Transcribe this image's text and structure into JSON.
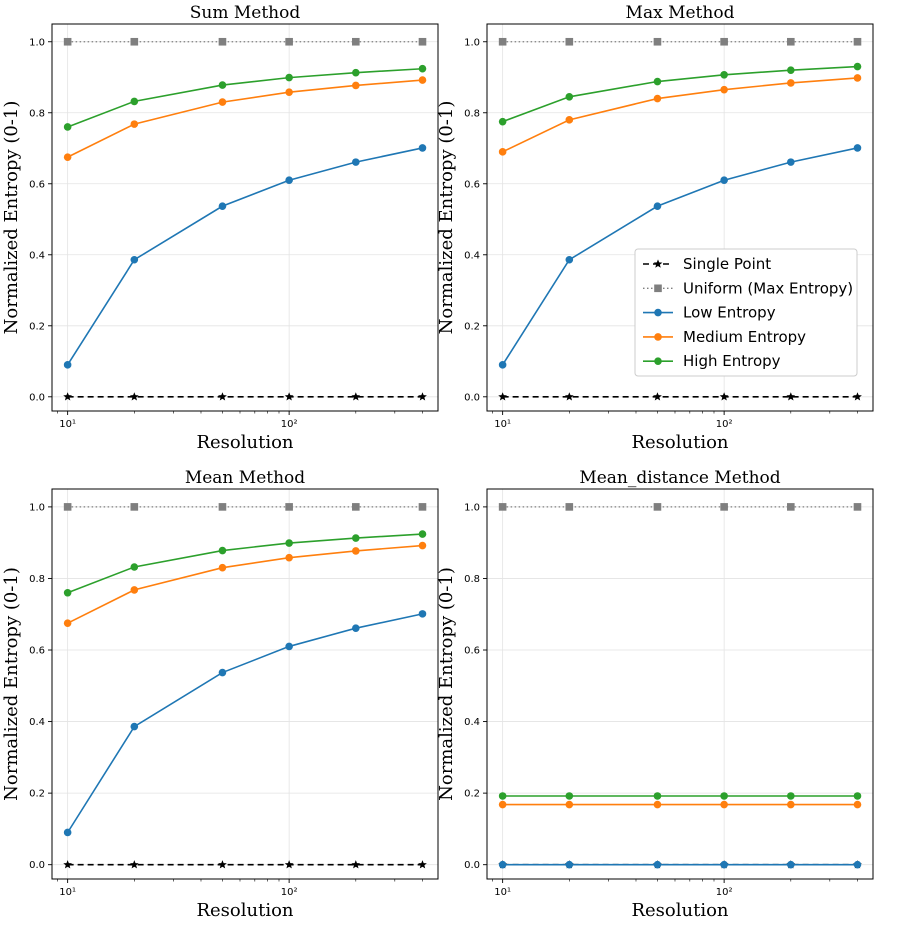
{
  "colors": {
    "single_point": "#000000",
    "uniform": "#7f7f7f",
    "low": "#1f77b4",
    "medium": "#ff7f0e",
    "high": "#2ca02c",
    "grid": "#e3e3e3"
  },
  "legend": {
    "placement": "center-right",
    "panel": 1,
    "entries": [
      "Single Point",
      "Uniform (Max Entropy)",
      "Low Entropy",
      "Medium Entropy",
      "High Entropy"
    ]
  },
  "chart_data": [
    {
      "type": "line",
      "title": "Sum Method",
      "xlabel": "Resolution",
      "ylabel": "Normalized Entropy (0-1)",
      "xscale": "log",
      "grid": true,
      "x": [
        10,
        20,
        50,
        100,
        200,
        400
      ],
      "ylim": [
        -0.04,
        1.05
      ],
      "yticks": [
        "0.0",
        "0.2",
        "0.4",
        "0.6",
        "0.8",
        "1.0"
      ],
      "xticks": [
        "10¹",
        "10²"
      ],
      "series": [
        {
          "name": "Single Point",
          "values": [
            0,
            0,
            0,
            0,
            0,
            0
          ]
        },
        {
          "name": "Uniform (Max Entropy)",
          "values": [
            1,
            1,
            1,
            1,
            1,
            1
          ]
        },
        {
          "name": "Low Entropy",
          "values": [
            0.09,
            0.386,
            0.537,
            0.61,
            0.661,
            0.701
          ]
        },
        {
          "name": "Medium Entropy",
          "values": [
            0.675,
            0.768,
            0.83,
            0.858,
            0.877,
            0.892
          ]
        },
        {
          "name": "High Entropy",
          "values": [
            0.76,
            0.832,
            0.878,
            0.899,
            0.913,
            0.924
          ]
        }
      ]
    },
    {
      "type": "line",
      "title": "Max Method",
      "xlabel": "Resolution",
      "ylabel": "Normalized Entropy (0-1)",
      "xscale": "log",
      "grid": true,
      "x": [
        10,
        20,
        50,
        100,
        200,
        400
      ],
      "ylim": [
        -0.04,
        1.05
      ],
      "yticks": [
        "0.0",
        "0.2",
        "0.4",
        "0.6",
        "0.8",
        "1.0"
      ],
      "xticks": [
        "10¹",
        "10²"
      ],
      "series": [
        {
          "name": "Single Point",
          "values": [
            0,
            0,
            0,
            0,
            0,
            0
          ]
        },
        {
          "name": "Uniform (Max Entropy)",
          "values": [
            1,
            1,
            1,
            1,
            1,
            1
          ]
        },
        {
          "name": "Low Entropy",
          "values": [
            0.09,
            0.386,
            0.537,
            0.61,
            0.661,
            0.701
          ]
        },
        {
          "name": "Medium Entropy",
          "values": [
            0.69,
            0.78,
            0.84,
            0.865,
            0.884,
            0.898
          ]
        },
        {
          "name": "High Entropy",
          "values": [
            0.775,
            0.845,
            0.888,
            0.907,
            0.92,
            0.93
          ]
        }
      ]
    },
    {
      "type": "line",
      "title": "Mean Method",
      "xlabel": "Resolution",
      "ylabel": "Normalized Entropy (0-1)",
      "xscale": "log",
      "grid": true,
      "x": [
        10,
        20,
        50,
        100,
        200,
        400
      ],
      "ylim": [
        -0.04,
        1.05
      ],
      "yticks": [
        "0.0",
        "0.2",
        "0.4",
        "0.6",
        "0.8",
        "1.0"
      ],
      "xticks": [
        "10¹",
        "10²"
      ],
      "series": [
        {
          "name": "Single Point",
          "values": [
            0,
            0,
            0,
            0,
            0,
            0
          ]
        },
        {
          "name": "Uniform (Max Entropy)",
          "values": [
            1,
            1,
            1,
            1,
            1,
            1
          ]
        },
        {
          "name": "Low Entropy",
          "values": [
            0.09,
            0.386,
            0.537,
            0.61,
            0.661,
            0.701
          ]
        },
        {
          "name": "Medium Entropy",
          "values": [
            0.675,
            0.768,
            0.83,
            0.858,
            0.877,
            0.892
          ]
        },
        {
          "name": "High Entropy",
          "values": [
            0.76,
            0.832,
            0.878,
            0.899,
            0.913,
            0.924
          ]
        }
      ]
    },
    {
      "type": "line",
      "title": "Mean_distance Method",
      "xlabel": "Resolution",
      "ylabel": "Normalized Entropy (0-1)",
      "xscale": "log",
      "grid": true,
      "x": [
        10,
        20,
        50,
        100,
        200,
        400
      ],
      "ylim": [
        -0.04,
        1.05
      ],
      "yticks": [
        "0.0",
        "0.2",
        "0.4",
        "0.6",
        "0.8",
        "1.0"
      ],
      "xticks": [
        "10¹",
        "10²"
      ],
      "series": [
        {
          "name": "Single Point",
          "values": [
            0,
            0,
            0,
            0,
            0,
            0
          ]
        },
        {
          "name": "Uniform (Max Entropy)",
          "values": [
            1,
            1,
            1,
            1,
            1,
            1
          ]
        },
        {
          "name": "Low Entropy",
          "values": [
            0,
            0,
            0,
            0,
            0,
            0
          ]
        },
        {
          "name": "Medium Entropy",
          "values": [
            0.168,
            0.168,
            0.168,
            0.168,
            0.168,
            0.168
          ]
        },
        {
          "name": "High Entropy",
          "values": [
            0.192,
            0.192,
            0.192,
            0.192,
            0.192,
            0.192
          ]
        }
      ]
    }
  ]
}
